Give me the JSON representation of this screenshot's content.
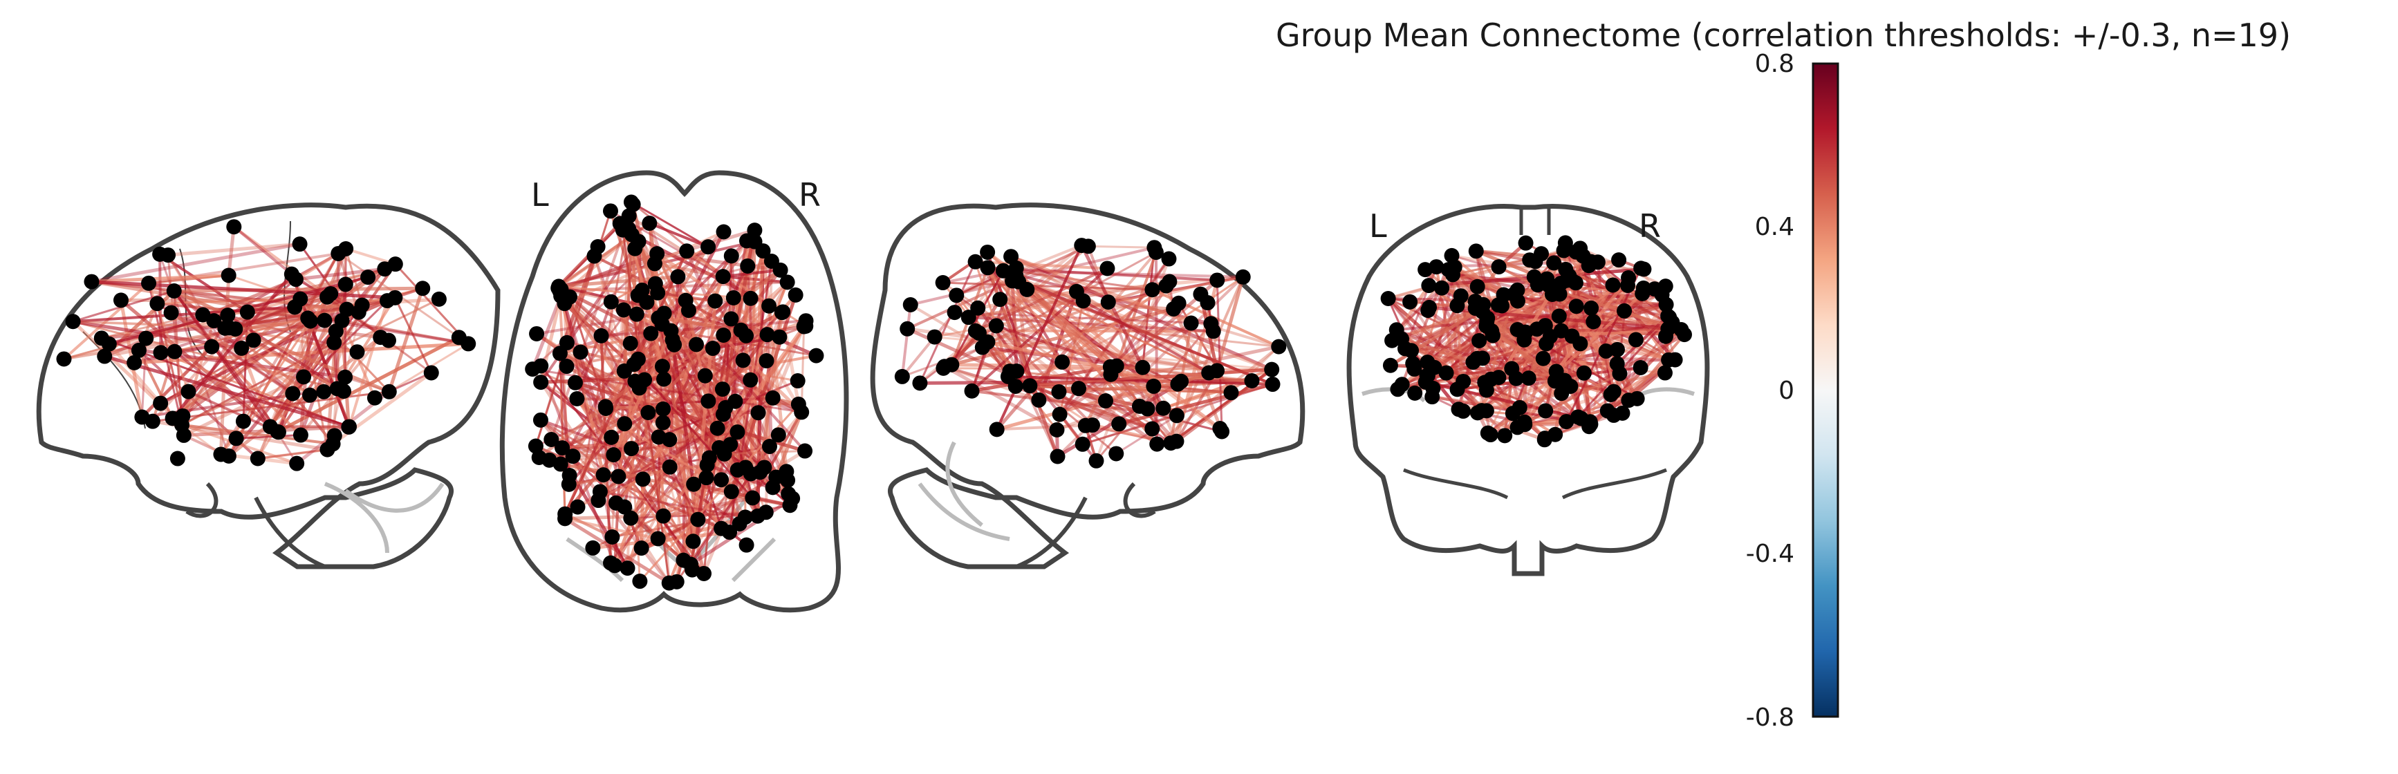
{
  "figure": {
    "title": "Group Mean Connectome (correlation thresholds: +/-0.3, n=19)",
    "views": [
      {
        "name": "sagittal-left"
      },
      {
        "name": "axial",
        "left_label": "L",
        "right_label": "R"
      },
      {
        "name": "sagittal-right"
      },
      {
        "name": "coronal",
        "left_label": "L",
        "right_label": "R"
      }
    ],
    "node_color": "#000000",
    "edge_color_positive": "#b2182b",
    "edge_color_light": "#e8836a"
  },
  "colorbar": {
    "ticks": [
      "0.8",
      "0.4",
      "0",
      "-0.4",
      "-0.8"
    ],
    "vmin": -0.8,
    "vmax": 0.8,
    "colors": [
      "#053061",
      "#2166ac",
      "#4393c3",
      "#92c5de",
      "#d1e5f0",
      "#f7f7f7",
      "#fddbc7",
      "#f4a582",
      "#d6604d",
      "#b2182b",
      "#67001f"
    ]
  }
}
